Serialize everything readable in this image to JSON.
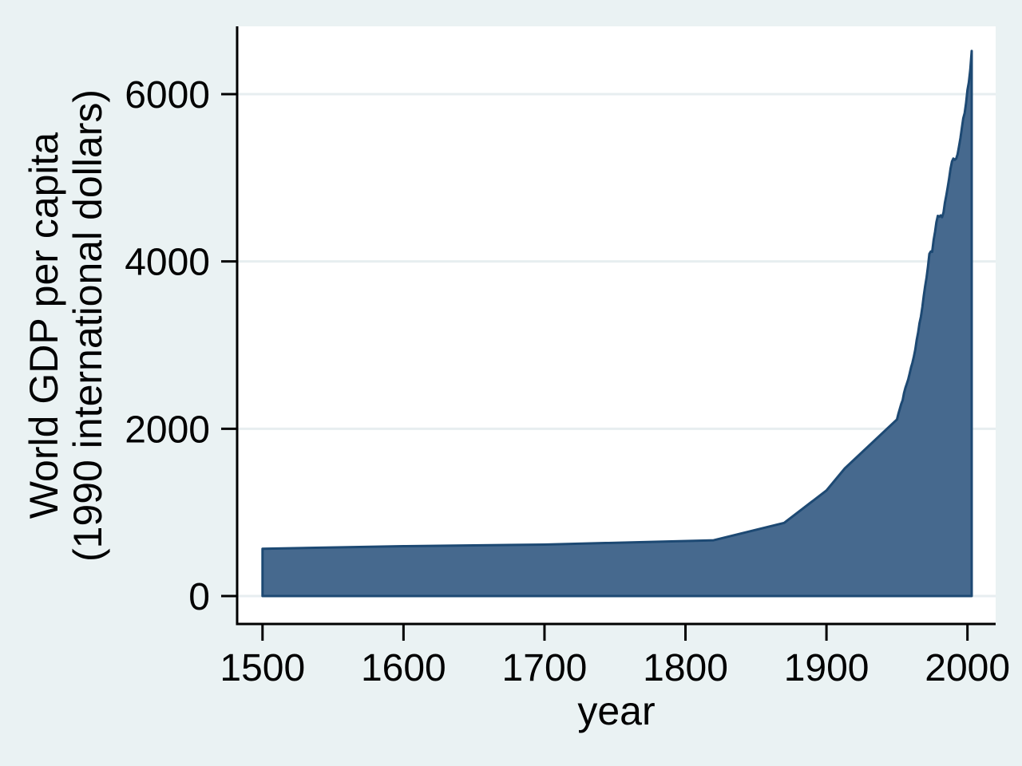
{
  "figure": {
    "background_color": "#eaf2f3",
    "plot_background_color": "#ffffff",
    "grid_color": "#e7eef0",
    "axis_color": "#000000",
    "text_color": "#000000"
  },
  "chart_data": {
    "type": "area",
    "title": "",
    "xlabel": "year",
    "ylabel_line1": "World GDP per capita",
    "ylabel_line2": "(1990 international dollars)",
    "legend_position": "none",
    "grid": true,
    "xlim": [
      1482,
      2020
    ],
    "ylim": [
      -334,
      6811
    ],
    "xticks": [
      1500,
      1600,
      1700,
      1800,
      1900,
      2000
    ],
    "yticks": [
      0,
      2000,
      4000,
      6000
    ],
    "baseline": 0,
    "fill_color": "#46698e",
    "line_color": "#1d4973",
    "series": [
      {
        "name": "World GDP per capita (1990 international dollars)",
        "points": [
          [
            1500,
            566
          ],
          [
            1600,
            596
          ],
          [
            1700,
            615
          ],
          [
            1820,
            667
          ],
          [
            1870,
            875
          ],
          [
            1900,
            1262
          ],
          [
            1913,
            1526
          ],
          [
            1950,
            2111
          ],
          [
            1951,
            2180
          ],
          [
            1952,
            2235
          ],
          [
            1953,
            2295
          ],
          [
            1954,
            2340
          ],
          [
            1955,
            2425
          ],
          [
            1956,
            2490
          ],
          [
            1957,
            2540
          ],
          [
            1958,
            2590
          ],
          [
            1959,
            2660
          ],
          [
            1960,
            2735
          ],
          [
            1961,
            2790
          ],
          [
            1962,
            2865
          ],
          [
            1963,
            2945
          ],
          [
            1964,
            3060
          ],
          [
            1965,
            3150
          ],
          [
            1966,
            3260
          ],
          [
            1967,
            3340
          ],
          [
            1968,
            3455
          ],
          [
            1969,
            3585
          ],
          [
            1970,
            3705
          ],
          [
            1971,
            3810
          ],
          [
            1972,
            3935
          ],
          [
            1973,
            4091
          ],
          [
            1974,
            4120
          ],
          [
            1975,
            4115
          ],
          [
            1976,
            4255
          ],
          [
            1977,
            4355
          ],
          [
            1978,
            4470
          ],
          [
            1979,
            4545
          ],
          [
            1980,
            4535
          ],
          [
            1981,
            4550
          ],
          [
            1982,
            4530
          ],
          [
            1983,
            4585
          ],
          [
            1984,
            4700
          ],
          [
            1985,
            4790
          ],
          [
            1986,
            4890
          ],
          [
            1987,
            4990
          ],
          [
            1988,
            5110
          ],
          [
            1989,
            5195
          ],
          [
            1990,
            5230
          ],
          [
            1991,
            5215
          ],
          [
            1992,
            5230
          ],
          [
            1993,
            5280
          ],
          [
            1994,
            5375
          ],
          [
            1995,
            5475
          ],
          [
            1996,
            5590
          ],
          [
            1997,
            5710
          ],
          [
            1998,
            5775
          ],
          [
            1999,
            5890
          ],
          [
            2000,
            6050
          ],
          [
            2001,
            6140
          ],
          [
            2002,
            6290
          ],
          [
            2003,
            6516
          ]
        ]
      }
    ]
  }
}
